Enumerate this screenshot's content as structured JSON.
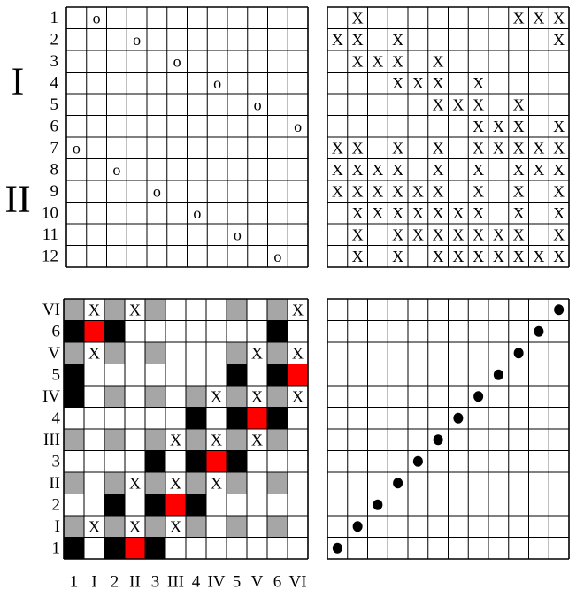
{
  "top_left": {
    "group_labels": [
      "I",
      "II"
    ],
    "row_labels": [
      "1",
      "2",
      "3",
      "4",
      "5",
      "6",
      "7",
      "8",
      "9",
      "10",
      "11",
      "12"
    ],
    "cells": [
      [
        null,
        "o",
        null,
        null,
        null,
        null,
        null,
        null,
        null,
        null,
        null,
        null
      ],
      [
        null,
        null,
        null,
        "o",
        null,
        null,
        null,
        null,
        null,
        null,
        null,
        null
      ],
      [
        null,
        null,
        null,
        null,
        null,
        "o",
        null,
        null,
        null,
        null,
        null,
        null
      ],
      [
        null,
        null,
        null,
        null,
        null,
        null,
        null,
        "o",
        null,
        null,
        null,
        null
      ],
      [
        null,
        null,
        null,
        null,
        null,
        null,
        null,
        null,
        null,
        "o",
        null,
        null
      ],
      [
        null,
        null,
        null,
        null,
        null,
        null,
        null,
        null,
        null,
        null,
        null,
        "o"
      ],
      [
        "o",
        null,
        null,
        null,
        null,
        null,
        null,
        null,
        null,
        null,
        null,
        null
      ],
      [
        null,
        null,
        "o",
        null,
        null,
        null,
        null,
        null,
        null,
        null,
        null,
        null
      ],
      [
        null,
        null,
        null,
        null,
        "o",
        null,
        null,
        null,
        null,
        null,
        null,
        null
      ],
      [
        null,
        null,
        null,
        null,
        null,
        null,
        "o",
        null,
        null,
        null,
        null,
        null
      ],
      [
        null,
        null,
        null,
        null,
        null,
        null,
        null,
        null,
        "o",
        null,
        null,
        null
      ],
      [
        null,
        null,
        null,
        null,
        null,
        null,
        null,
        null,
        null,
        null,
        "o",
        null
      ]
    ]
  },
  "top_right": {
    "cells": [
      [
        null,
        "X",
        null,
        null,
        null,
        null,
        null,
        null,
        null,
        "X",
        "X",
        "X"
      ],
      [
        "X",
        "X",
        null,
        "X",
        null,
        null,
        null,
        null,
        null,
        null,
        null,
        "X"
      ],
      [
        null,
        "X",
        "X",
        "X",
        null,
        "X",
        null,
        null,
        null,
        null,
        null,
        null
      ],
      [
        null,
        null,
        null,
        "X",
        "X",
        "X",
        null,
        "X",
        null,
        null,
        null,
        null
      ],
      [
        null,
        null,
        null,
        null,
        null,
        "X",
        "X",
        "X",
        null,
        "X",
        null,
        null
      ],
      [
        null,
        null,
        null,
        null,
        null,
        null,
        null,
        "X",
        "X",
        "X",
        null,
        "X"
      ],
      [
        "X",
        "X",
        null,
        "X",
        null,
        "X",
        null,
        "X",
        "X",
        "X",
        "X",
        "X"
      ],
      [
        "X",
        "X",
        "X",
        "X",
        null,
        "X",
        null,
        "X",
        null,
        "X",
        "X",
        "X"
      ],
      [
        "X",
        "X",
        "X",
        "X",
        "X",
        "X",
        null,
        "X",
        null,
        "X",
        null,
        "X"
      ],
      [
        null,
        "X",
        "X",
        "X",
        "X",
        "X",
        "X",
        "X",
        null,
        "X",
        null,
        "X"
      ],
      [
        null,
        "X",
        null,
        "X",
        "X",
        "X",
        "X",
        "X",
        "X",
        "X",
        null,
        "X"
      ],
      [
        null,
        "X",
        null,
        "X",
        null,
        "X",
        "X",
        "X",
        "X",
        "X",
        "X",
        "X"
      ]
    ]
  },
  "bottom_left": {
    "row_labels": [
      "VI",
      "6",
      "V",
      "5",
      "IV",
      "4",
      "III",
      "3",
      "II",
      "2",
      "I",
      "1"
    ],
    "column_labels": [
      "1",
      "I",
      "2",
      "II",
      "3",
      "III",
      "4",
      "IV",
      "5",
      "V",
      "6",
      "VI"
    ],
    "palette": {
      "w": "#ffffff",
      "g": "#a6a6a6",
      "k": "#000000",
      "r": "#ff0000"
    },
    "fills": [
      [
        "g",
        "w",
        "g",
        "w",
        "g",
        "w",
        "w",
        "w",
        "g",
        "w",
        "g",
        "w"
      ],
      [
        "k",
        "r",
        "k",
        "w",
        "w",
        "w",
        "w",
        "w",
        "w",
        "w",
        "k",
        "w"
      ],
      [
        "g",
        "w",
        "g",
        "w",
        "g",
        "w",
        "w",
        "w",
        "g",
        "w",
        "g",
        "w"
      ],
      [
        "k",
        "w",
        "w",
        "w",
        "w",
        "w",
        "w",
        "w",
        "k",
        "w",
        "k",
        "r"
      ],
      [
        "k",
        "w",
        "g",
        "w",
        "g",
        "w",
        "g",
        "w",
        "g",
        "w",
        "g",
        "w"
      ],
      [
        "w",
        "w",
        "w",
        "w",
        "w",
        "w",
        "k",
        "w",
        "k",
        "r",
        "k",
        "w"
      ],
      [
        "g",
        "w",
        "g",
        "w",
        "g",
        "w",
        "g",
        "w",
        "g",
        "w",
        "g",
        "w"
      ],
      [
        "w",
        "w",
        "w",
        "w",
        "k",
        "w",
        "k",
        "r",
        "k",
        "w",
        "w",
        "w"
      ],
      [
        "g",
        "w",
        "g",
        "w",
        "g",
        "w",
        "g",
        "w",
        "g",
        "w",
        "g",
        "w"
      ],
      [
        "w",
        "w",
        "k",
        "w",
        "k",
        "r",
        "k",
        "w",
        "w",
        "w",
        "w",
        "w"
      ],
      [
        "g",
        "w",
        "g",
        "w",
        "g",
        "w",
        "g",
        "w",
        "g",
        "w",
        "g",
        "w"
      ],
      [
        "k",
        "w",
        "k",
        "r",
        "k",
        "w",
        "w",
        "w",
        "w",
        "w",
        "w",
        "w"
      ]
    ],
    "cells": [
      [
        null,
        "X",
        null,
        "X",
        null,
        null,
        null,
        null,
        null,
        null,
        null,
        "X"
      ],
      [
        null,
        null,
        null,
        null,
        null,
        null,
        null,
        null,
        null,
        null,
        null,
        null
      ],
      [
        null,
        "X",
        null,
        null,
        null,
        null,
        null,
        null,
        null,
        "X",
        null,
        "X"
      ],
      [
        null,
        null,
        null,
        null,
        null,
        null,
        null,
        null,
        null,
        null,
        null,
        null
      ],
      [
        null,
        null,
        null,
        null,
        null,
        null,
        null,
        "X",
        null,
        "X",
        null,
        "X"
      ],
      [
        null,
        null,
        null,
        null,
        null,
        null,
        null,
        null,
        null,
        null,
        null,
        null
      ],
      [
        null,
        null,
        null,
        null,
        null,
        "X",
        null,
        "X",
        null,
        "X",
        null,
        null
      ],
      [
        null,
        null,
        null,
        null,
        null,
        null,
        null,
        null,
        null,
        null,
        null,
        null
      ],
      [
        null,
        null,
        null,
        "X",
        null,
        "X",
        null,
        "X",
        null,
        null,
        null,
        null
      ],
      [
        null,
        null,
        null,
        null,
        null,
        null,
        null,
        null,
        null,
        null,
        null,
        null
      ],
      [
        null,
        "X",
        null,
        "X",
        null,
        "X",
        null,
        null,
        null,
        null,
        null,
        null
      ],
      [
        null,
        null,
        null,
        null,
        null,
        null,
        null,
        null,
        null,
        null,
        null,
        null
      ]
    ]
  },
  "bottom_right": {
    "dots": [
      [
        false,
        false,
        false,
        false,
        false,
        false,
        false,
        false,
        false,
        false,
        false,
        true
      ],
      [
        false,
        false,
        false,
        false,
        false,
        false,
        false,
        false,
        false,
        false,
        true,
        false
      ],
      [
        false,
        false,
        false,
        false,
        false,
        false,
        false,
        false,
        false,
        true,
        false,
        false
      ],
      [
        false,
        false,
        false,
        false,
        false,
        false,
        false,
        false,
        true,
        false,
        false,
        false
      ],
      [
        false,
        false,
        false,
        false,
        false,
        false,
        false,
        true,
        false,
        false,
        false,
        false
      ],
      [
        false,
        false,
        false,
        false,
        false,
        false,
        true,
        false,
        false,
        false,
        false,
        false
      ],
      [
        false,
        false,
        false,
        false,
        false,
        true,
        false,
        false,
        false,
        false,
        false,
        false
      ],
      [
        false,
        false,
        false,
        false,
        true,
        false,
        false,
        false,
        false,
        false,
        false,
        false
      ],
      [
        false,
        false,
        false,
        true,
        false,
        false,
        false,
        false,
        false,
        false,
        false,
        false
      ],
      [
        false,
        false,
        true,
        false,
        false,
        false,
        false,
        false,
        false,
        false,
        false,
        false
      ],
      [
        false,
        true,
        false,
        false,
        false,
        false,
        false,
        false,
        false,
        false,
        false,
        false
      ],
      [
        true,
        false,
        false,
        false,
        false,
        false,
        false,
        false,
        false,
        false,
        false,
        false
      ]
    ]
  }
}
